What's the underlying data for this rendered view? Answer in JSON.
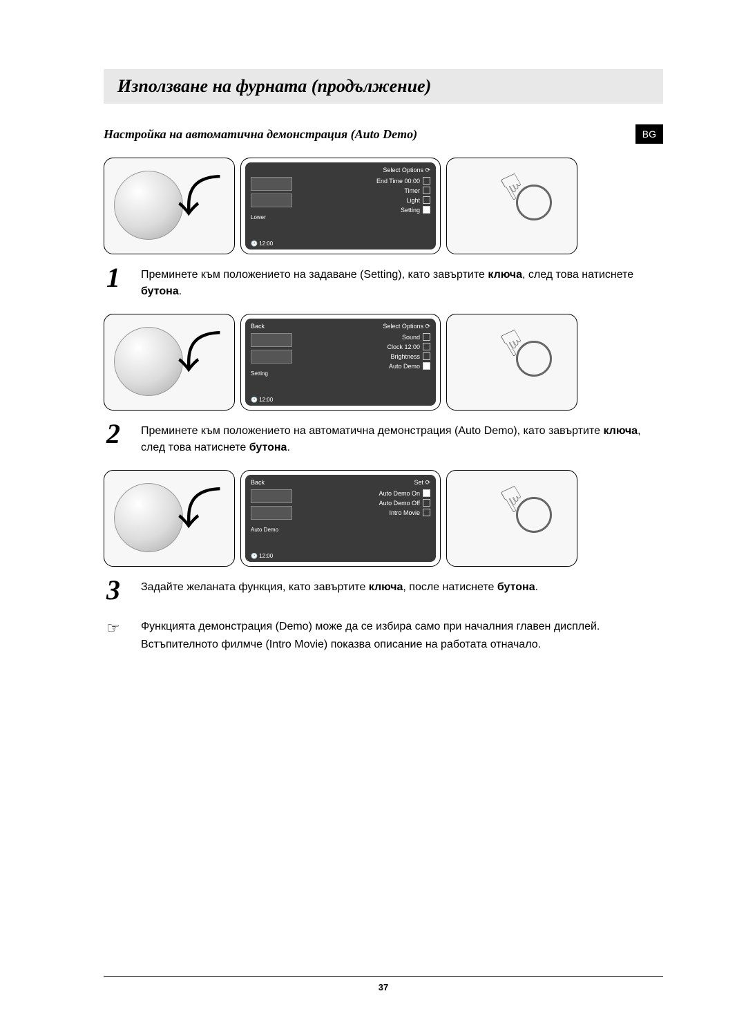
{
  "title": "Използване на фурната (продължение)",
  "subtitle": "Настройка на автоматична демонстрация (Auto Demo)",
  "lang_badge": "BG",
  "clock_label": "12:00",
  "screens": {
    "s1": {
      "top_left": "",
      "top_right": "Select Options",
      "left_label": "Lower",
      "items": [
        "End Time 00:00",
        "Timer",
        "Light",
        "Setting"
      ],
      "selected_idx": 3
    },
    "s2": {
      "top_left": "Back",
      "top_right": "Select Options",
      "left_label": "Setting",
      "items": [
        "Sound",
        "Clock 12:00",
        "Brightness",
        "Auto Demo"
      ],
      "selected_idx": 3
    },
    "s3": {
      "top_left": "Back",
      "top_right": "Set",
      "left_label": "Auto Demo",
      "items": [
        "Auto Demo On",
        "Auto Demo Off",
        "Intro Movie"
      ],
      "selected_idx": 0
    }
  },
  "steps": {
    "1": {
      "num": "1",
      "html": "Преминете към положението на задаване (Setting), като завъртите <b>ключа</b>, след това натиснете <b>бутона</b>."
    },
    "2": {
      "num": "2",
      "html": "Преминете към положението на автоматична демонстрация (Auto Demo), като завъртите <b>ключа</b>, след това натиснете <b>бутона</b>."
    },
    "3": {
      "num": "3",
      "html": "Задайте желаната функция, като завъртите <b>ключа</b>, после натиснете <b>бутона</b>."
    }
  },
  "note_icon": "☞",
  "note_lines": [
    "Функцията демонстрация (Demo) може да се избира само при началния главен дисплей.",
    "Встъпителното филмче (Intro Movie) показва описание на работата отначало."
  ],
  "page_number": "37"
}
